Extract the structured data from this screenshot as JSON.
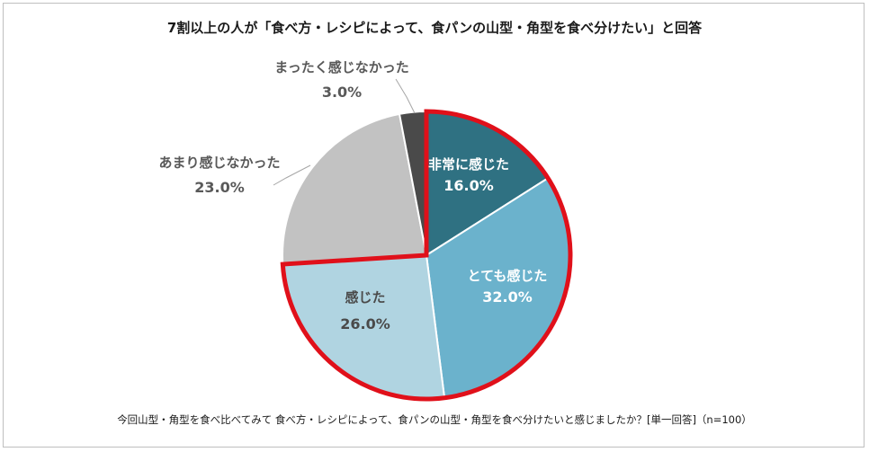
{
  "chart_data": {
    "type": "pie",
    "title": "7割以上の人が「食べ方・レシピによって、食パンの山型・角型を食べ分けたい」と回答",
    "note": "今回山型・角型を食べ比べてみて 食べ方・レシピによって、食パンの山型・角型を食べ分けたいと感じましたか？[単一回答]（n=100）",
    "slices": [
      {
        "label": "非常に感じた",
        "value": 16.0,
        "value_label": "16.0%",
        "color": "#2f7182",
        "text_color": "#ffffff",
        "highlighted": true
      },
      {
        "label": "とても感じた",
        "value": 32.0,
        "value_label": "32.0%",
        "color": "#6bb2cc",
        "text_color": "#ffffff",
        "highlighted": true
      },
      {
        "label": "感じた",
        "value": 26.0,
        "value_label": "26.0%",
        "color": "#b0d4e1",
        "text_color": "#4a4a4a",
        "highlighted": true
      },
      {
        "label": "あまり感じなかった",
        "value": 23.0,
        "value_label": "23.0%",
        "color": "#c2c2c2",
        "text_color": "#595959",
        "highlighted": false
      },
      {
        "label": "まったく感じなかった",
        "value": 3.0,
        "value_label": "3.0%",
        "color": "#4a4a4a",
        "text_color": "#595959",
        "highlighted": false
      }
    ],
    "highlight_color": "#e0101a"
  }
}
